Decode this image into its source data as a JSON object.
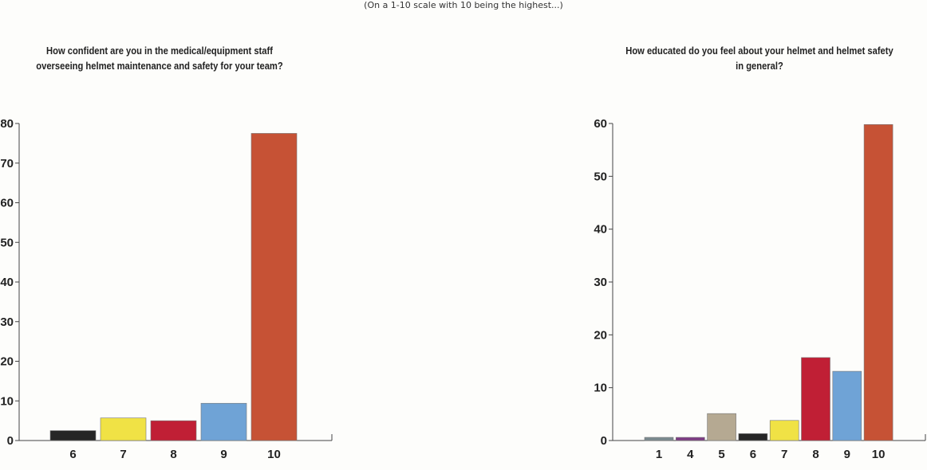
{
  "header": {
    "subtitle": "(On a 1-10 scale with 10 being the highest...)"
  },
  "chart_data": [
    {
      "type": "bar",
      "title": "How confident are you in the medical/equipment staff overseeing helmet maintenance and safety for your team?",
      "categories": [
        "6",
        "7",
        "8",
        "9",
        "10"
      ],
      "values": [
        2.5,
        5.7,
        5.0,
        9.4,
        77.5
      ],
      "colors": [
        "#262626",
        "#f0e245",
        "#c01f35",
        "#6fa3d6",
        "#c65235"
      ],
      "ylim": [
        0,
        80
      ],
      "yticks": [
        0,
        10,
        20,
        30,
        40,
        50,
        60,
        70,
        80
      ],
      "xlabel": "",
      "ylabel": ""
    },
    {
      "type": "bar",
      "title": "How educated do you feel about your helmet and helmet safety in general?",
      "categories": [
        "1",
        "4",
        "5",
        "6",
        "7",
        "8",
        "9",
        "10"
      ],
      "values": [
        0.6,
        0.6,
        5.1,
        1.3,
        3.8,
        15.7,
        13.1,
        59.8
      ],
      "colors": [
        "#7b8b90",
        "#7e3c85",
        "#b5a992",
        "#262626",
        "#f0e245",
        "#c01f35",
        "#6fa3d6",
        "#c65235"
      ],
      "ylim": [
        0,
        60
      ],
      "yticks": [
        0,
        10,
        20,
        30,
        40,
        50,
        60
      ],
      "xlabel": "",
      "ylabel": ""
    }
  ]
}
